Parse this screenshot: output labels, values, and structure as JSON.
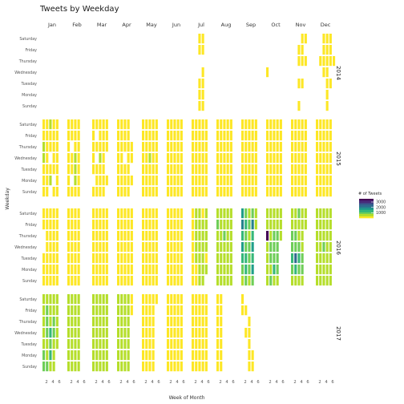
{
  "chart_data": {
    "type": "heatmap",
    "title": "Tweets by Weekday",
    "xlabel": "Week of Month",
    "ylabel": "Weekday",
    "months": [
      "Jan",
      "Feb",
      "Mar",
      "Apr",
      "May",
      "Jun",
      "Jul",
      "Aug",
      "Sep",
      "Oct",
      "Nov",
      "Dec"
    ],
    "weekdays": [
      "Saturday",
      "Friday",
      "Thursday",
      "Wednesday",
      "Tuesday",
      "Monday",
      "Sunday"
    ],
    "years": [
      "2014",
      "2015",
      "2016",
      "2017"
    ],
    "week_ticks": [
      "2",
      "4",
      "6"
    ],
    "legend": {
      "title": "# of Tweets",
      "ticks": [
        3000,
        2000,
        1000
      ],
      "range": [
        0,
        3600
      ],
      "colors": [
        "#fde725",
        "#b5de2b",
        "#6ece58",
        "#35b779",
        "#1f9e89",
        "#26828e",
        "#31688e",
        "#3e4989",
        "#482878",
        "#440154"
      ]
    },
    "cell_data": {
      "value_legend": "A=100 B=400 C=700 D=1000 E=1300 F=1600 G=1900 H=2200 I=2500 J=2900 K=3200 L=3500",
      "rows": {
        "2014-Jan": "",
        "2014-Feb": "",
        "2014-Mar": "",
        "2014-Apr": "",
        "2014-May": "",
        "2014-Jun": "",
        "2014-Jul": "3:AA..AAA|4:AA.AAAA",
        "2014-Aug": "",
        "2014-Sep": "",
        "2014-Oct": "1:...A...",
        "2014-Nov": "3:.AA.A.A|4:AAA.A..|5:A.A....",
        "2014-Dec": "2:..A....|3:AAAA...|4:AAAAAAA|5:AAA.A..|6:..A....",
        "2015-Jan": "1:AABBAAA|2:AAAAAAA|3:BAA.AB.|4:AAAAA.A|5:AAAAAAA",
        "2015-Feb": "1:AAAAAAA|2:AA.AA.A|3:AAABCBA|4:AAAAAAA",
        "2015-Mar": "1:AAAAA.A|2:A.A.AAA|3:AAABAAA|4:AAAAAAA|5:AAA..A.",
        "2015-Apr": "1:AAAAAAA|2:AAAAAAA|3:AAA.AAA|4:AAAAAAA|5:..AA.A.",
        "2015-May": "1:AAAAAAA|2:AAAAAAA|3:AAABAAA|4:AAAAAAA|5:AAAAAAA",
        "2015-Jun": "1:AAAAAAA|2:AAAAAAA|3:AAAAAAA|4:AAAAAAA|5:AAAAAAA",
        "2015-Jul": "1:AAAAAAA|2:AAAAAAA|3:AAAAAAA|4:AAAAAAA|5:AAAAAAA",
        "2015-Aug": "1:AAAAAAA|2:AAAAAAA|3:AAAAAAA|4:AAAAAAA|5:AAAAAAA",
        "2015-Sep": "1:AAAAAAA|2:AAAAAAA|3:AAAAAAA|4:AAAAAAA|5:AAAAAAA",
        "2015-Oct": "1:AAAAAAA|2:AAAAAAA|3:AAAAAAA|4:AAAAAAA|5:AAAAAAA",
        "2015-Nov": "1:AAAAAAA|2:AAAAAAA|3:AAAAAAA|4:AAAAAAA|5:AAAAAAA",
        "2015-Dec": "1:AAAAAAA|2:AAAAAAA|3:AAAAAAA|4:AAAAAAA|5:AAAAAAA",
        "2016-Jan": "1:AA..AAA|2:AAAAAAA|3:AAAAAAA|4:AAAAAAA|5:AAAAAAA",
        "2016-Feb": "1:AAAAAAA|2:AAAAAAA|3:AAAAAAA|4:AAAAAAA",
        "2016-Mar": "1:AAAAAAA|2:AAAAAAA|3:AAAAAAA|4:AAAAAAA|5:AAAAAAA",
        "2016-Apr": "1:AAAAAAA|2:AAAAAAA|3:AAAAAAA|4:AAAAAAA|5:AAAAAAA",
        "2016-May": "1:AAAAAAA|2:AAAAAAA|3:AAAAAAA|4:AAAAAAA|5:AAAAAAA",
        "2016-Jun": "1:AAAAAAA|2:AAAAAAA|3:AAAAAAA|4:AAAAAAA|5:AAAAAAA",
        "2016-Jul": "1:AAAAAAA|2:BBBBBAA|3:BBBBBBB|4:ABBBBBB|5:BCBBAB.",
        "2016-Aug": "1:BDCCCBB|2:BBBCCBB|3:CCDCCBB|4:BCCCCBB|5:BCCCCBB",
        "2016-Sep": "1:FGEFEDC|2:DEDDEED|3:CDCDDDC|4:DGEFEFD|5:BC.....",
        "2016-Oct": "1:BCLBCCC|2:CCCDDCD|3:BCDDDEC|4:CCDDDDC|5:CCC....",
        "2016-Nov": "1:CCDDEDC|2:CCDDIEC|3:DCCDEDC|4:CCCCDDC|5:BC.....",
        "2016-Dec": "1:BBCCCCB|2:CCCCCCC|3:CCCDCCC|4:CCCCCCB|5:CCCCCCC",
        "2017-Jan": "1:CCCCCDD|2:CDDDCCD|3:CCCEDEC|4:BCDDCCC|5:BCCCC..",
        "2017-Feb": "1:BBBBBBB|2:BBBBBBB|3:BBBBBBB|4:BBBBBBB",
        "2017-Mar": "1:BBBBBBB|2:BBBBBBB|3:BBBBBBB|4:BBBBBBB|5:BBBBBBB",
        "2017-Apr": "1:BBBBBBB|2:BBBBBBB|3:BBBBBBB|4:BBBBBBB|5:AA.....",
        "2017-May": "1:AAAAAAA|2:AAAAAAA|3:AAAAAAA|4:AAAAAAA|5:A......",
        "2017-Jun": "1:AAAAAAA|2:AAAAAAA|3:AAAAAAA|4:AAAAAAA|5:AAAAAAA",
        "2017-Jul": "1:AAAAAAA|2:AAAAAAA|3:AAAAAAA|4:AAAAAAA|5:AAAAAAA",
        "2017-Aug": "1:AAAAAAA|2:AAAAAAA|3:.......|4:.......",
        "2017-Sep": "1:AA.....|2:.A.A...|3:..AAAAA|4:.....AA",
        "2017-Oct": "",
        "2017-Nov": "",
        "2017-Dec": ""
      }
    }
  }
}
